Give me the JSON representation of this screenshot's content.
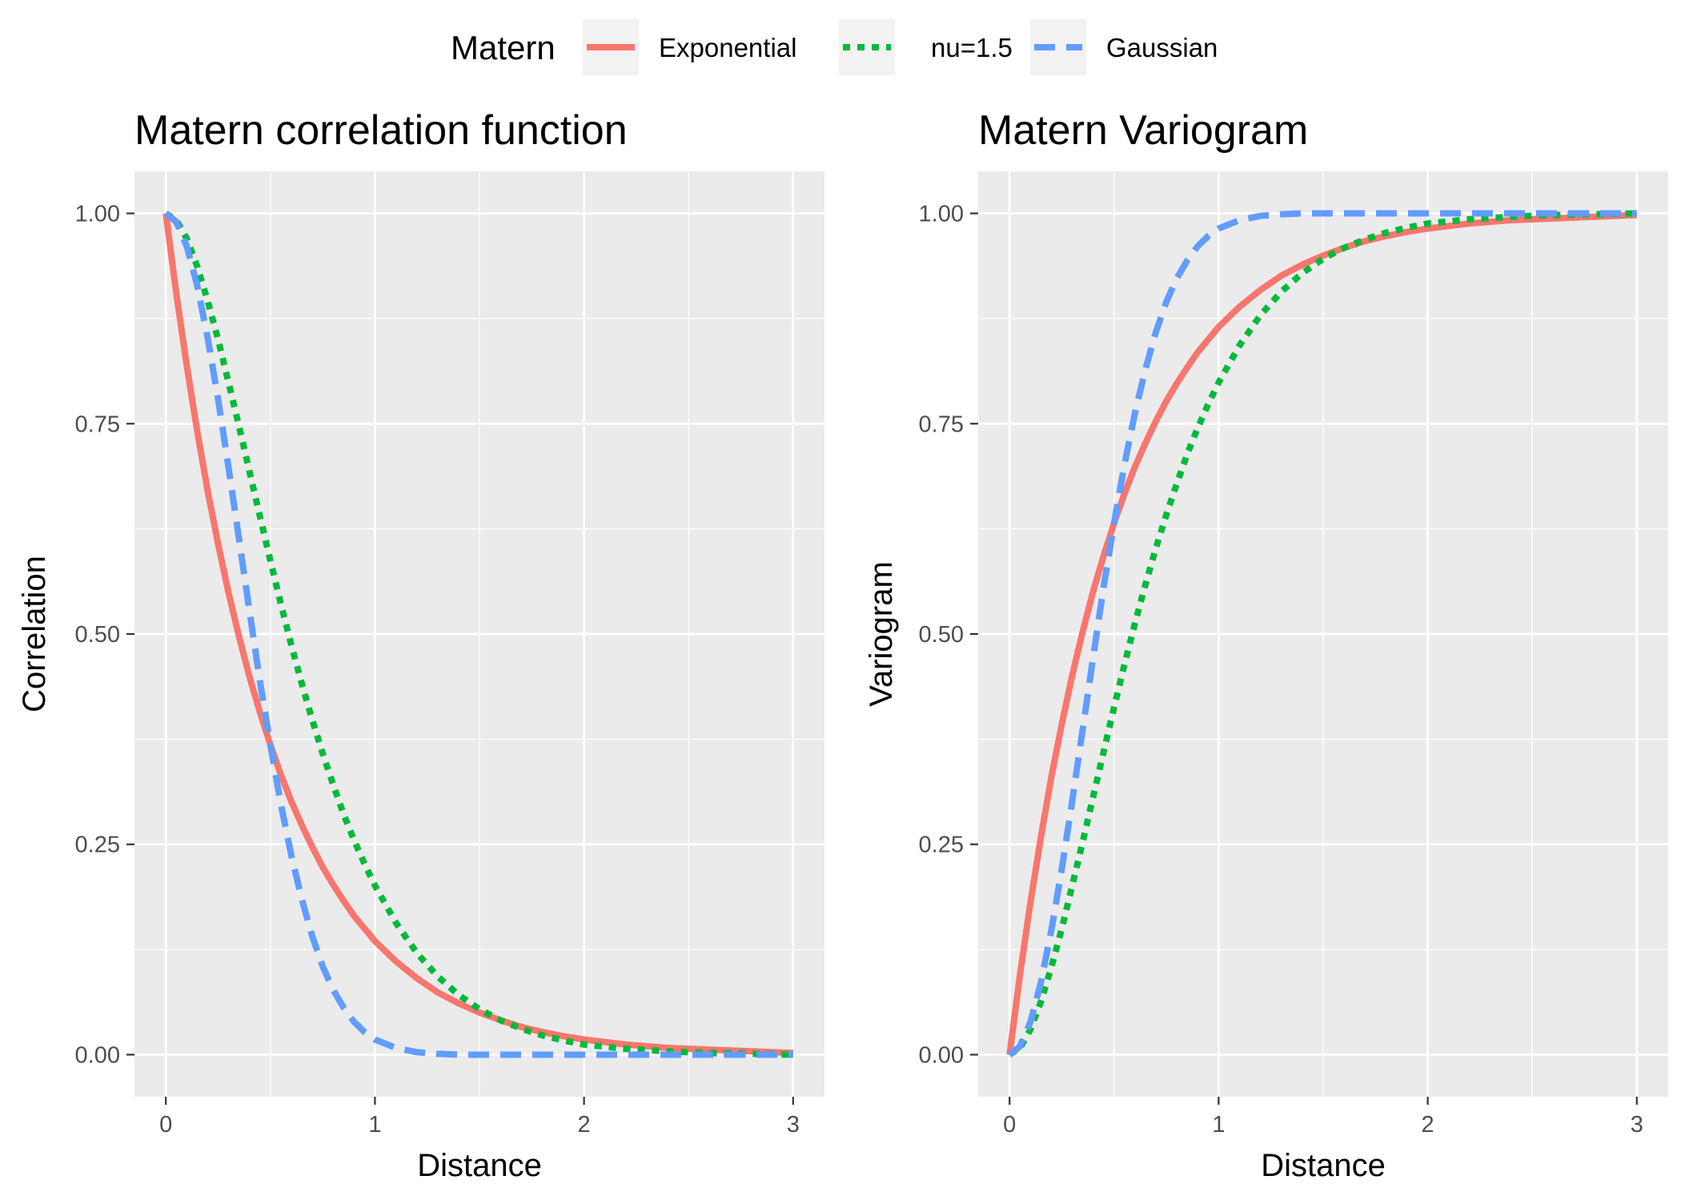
{
  "legend": {
    "title": "Matern",
    "entries": [
      {
        "label": "Exponential",
        "color": "#F8766D",
        "line_style": "solid"
      },
      {
        "label": "nu=1.5",
        "color": "#00BA38",
        "line_style": "dotted"
      },
      {
        "label": "Gaussian",
        "color": "#619CFF",
        "line_style": "dashed"
      }
    ],
    "position": "top"
  },
  "chart_data": [
    {
      "type": "line",
      "title": "Matern correlation function",
      "xlabel": "Distance",
      "ylabel": "Correlation",
      "xlim": [
        -0.15,
        3.15
      ],
      "ylim": [
        -0.05,
        1.05
      ],
      "x_ticks": [
        0,
        1,
        2,
        3
      ],
      "x_tick_labels": [
        "0",
        "1",
        "2",
        "3"
      ],
      "y_ticks": [
        0,
        0.25,
        0.5,
        0.75,
        1
      ],
      "y_tick_labels": [
        "0.00",
        "0.25",
        "0.50",
        "0.75",
        "1.00"
      ],
      "grid": true,
      "x": [
        0,
        0.05,
        0.1,
        0.15,
        0.2,
        0.25,
        0.3,
        0.35,
        0.4,
        0.45,
        0.5,
        0.55,
        0.6,
        0.65,
        0.7,
        0.75,
        0.8,
        0.85,
        0.9,
        0.95,
        1,
        1.1,
        1.2,
        1.3,
        1.4,
        1.5,
        1.6,
        1.7,
        1.8,
        1.9,
        2,
        2.2,
        2.4,
        2.6,
        2.8,
        3
      ],
      "series": [
        {
          "name": "Exponential",
          "values": [
            1,
            0.905,
            0.819,
            0.741,
            0.67,
            0.607,
            0.549,
            0.497,
            0.449,
            0.407,
            0.368,
            0.333,
            0.301,
            0.273,
            0.247,
            0.223,
            0.202,
            0.183,
            0.165,
            0.15,
            0.135,
            0.111,
            0.091,
            0.074,
            0.061,
            0.05,
            0.041,
            0.033,
            0.027,
            0.022,
            0.018,
            0.012,
            0.008,
            0.006,
            0.004,
            0.002
          ]
        },
        {
          "name": "nu=1.5",
          "values": [
            1,
            0.992,
            0.97,
            0.937,
            0.896,
            0.85,
            0.799,
            0.747,
            0.693,
            0.64,
            0.587,
            0.536,
            0.487,
            0.441,
            0.398,
            0.358,
            0.321,
            0.286,
            0.255,
            0.227,
            0.201,
            0.157,
            0.121,
            0.093,
            0.071,
            0.054,
            0.041,
            0.031,
            0.023,
            0.017,
            0.012,
            0.007,
            0.004,
            0.002,
            0.001,
            0.0
          ]
        },
        {
          "name": "Gaussian",
          "values": [
            1,
            0.99,
            0.961,
            0.914,
            0.852,
            0.779,
            0.698,
            0.613,
            0.527,
            0.444,
            0.368,
            0.298,
            0.237,
            0.185,
            0.141,
            0.105,
            0.077,
            0.056,
            0.039,
            0.027,
            0.018,
            0.008,
            0.003,
            0.001,
            0.0,
            0.0,
            0.0,
            0.0,
            0.0,
            0.0,
            0.0,
            0.0,
            0.0,
            0.0,
            0.0,
            0.0
          ]
        }
      ]
    },
    {
      "type": "line",
      "title": "Matern Variogram",
      "xlabel": "Distance",
      "ylabel": "Variogram",
      "xlim": [
        -0.15,
        3.15
      ],
      "ylim": [
        -0.05,
        1.05
      ],
      "x_ticks": [
        0,
        1,
        2,
        3
      ],
      "x_tick_labels": [
        "0",
        "1",
        "2",
        "3"
      ],
      "y_ticks": [
        0,
        0.25,
        0.5,
        0.75,
        1
      ],
      "y_tick_labels": [
        "0.00",
        "0.25",
        "0.50",
        "0.75",
        "1.00"
      ],
      "grid": true,
      "x": [
        0,
        0.05,
        0.1,
        0.15,
        0.2,
        0.25,
        0.3,
        0.35,
        0.4,
        0.45,
        0.5,
        0.55,
        0.6,
        0.65,
        0.7,
        0.75,
        0.8,
        0.85,
        0.9,
        0.95,
        1,
        1.1,
        1.2,
        1.3,
        1.4,
        1.5,
        1.6,
        1.7,
        1.8,
        1.9,
        2,
        2.2,
        2.4,
        2.6,
        2.8,
        3
      ],
      "series": [
        {
          "name": "Exponential",
          "values": [
            0,
            0.095,
            0.181,
            0.259,
            0.33,
            0.393,
            0.451,
            0.503,
            0.551,
            0.593,
            0.632,
            0.667,
            0.699,
            0.727,
            0.753,
            0.777,
            0.798,
            0.817,
            0.835,
            0.85,
            0.865,
            0.889,
            0.909,
            0.926,
            0.939,
            0.95,
            0.959,
            0.967,
            0.973,
            0.978,
            0.982,
            0.988,
            0.992,
            0.994,
            0.996,
            0.998
          ]
        },
        {
          "name": "nu=1.5",
          "values": [
            0,
            0.008,
            0.03,
            0.063,
            0.104,
            0.15,
            0.201,
            0.253,
            0.307,
            0.36,
            0.413,
            0.464,
            0.513,
            0.559,
            0.602,
            0.642,
            0.679,
            0.714,
            0.745,
            0.773,
            0.799,
            0.843,
            0.879,
            0.907,
            0.929,
            0.946,
            0.959,
            0.969,
            0.977,
            0.983,
            0.988,
            0.993,
            0.996,
            0.998,
            0.999,
            1.0
          ]
        },
        {
          "name": "Gaussian",
          "values": [
            0,
            0.01,
            0.039,
            0.086,
            0.148,
            0.221,
            0.302,
            0.387,
            0.473,
            0.556,
            0.632,
            0.702,
            0.763,
            0.815,
            0.859,
            0.895,
            0.923,
            0.944,
            0.961,
            0.973,
            0.982,
            0.992,
            0.997,
            0.999,
            1.0,
            1.0,
            1.0,
            1.0,
            1.0,
            1.0,
            1.0,
            1.0,
            1.0,
            1.0,
            1.0,
            1.0
          ]
        }
      ]
    }
  ]
}
